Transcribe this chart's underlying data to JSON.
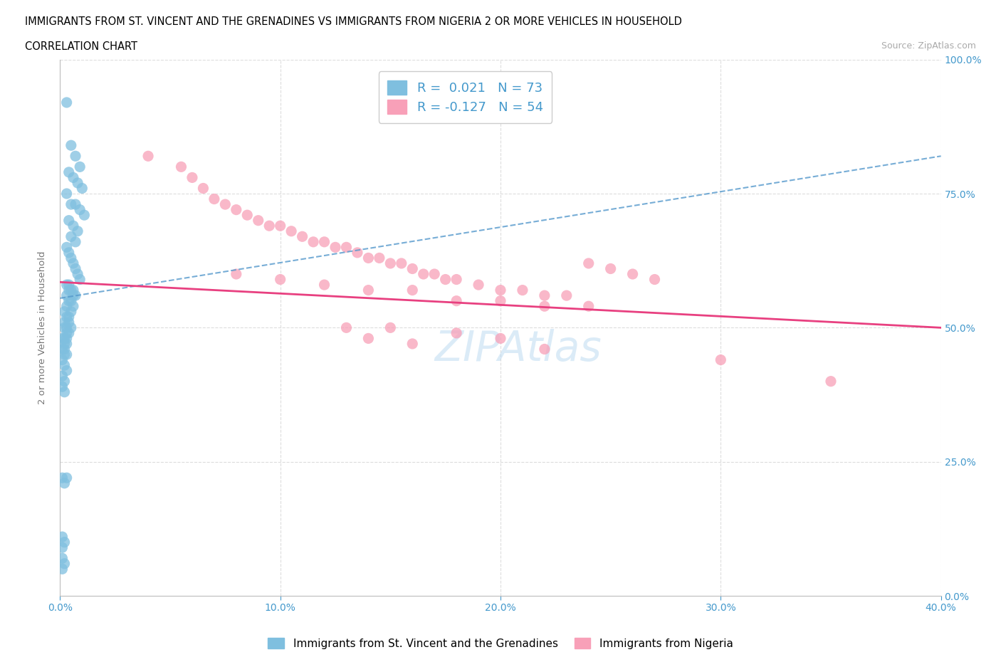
{
  "title_line1": "IMMIGRANTS FROM ST. VINCENT AND THE GRENADINES VS IMMIGRANTS FROM NIGERIA 2 OR MORE VEHICLES IN HOUSEHOLD",
  "title_line2": "CORRELATION CHART",
  "source_text": "Source: ZipAtlas.com",
  "ylabel": "2 or more Vehicles in Household",
  "xlim": [
    0.0,
    0.4
  ],
  "ylim": [
    0.0,
    1.0
  ],
  "xticks": [
    0.0,
    0.1,
    0.2,
    0.3,
    0.4
  ],
  "xticklabels": [
    "0.0%",
    "10.0%",
    "20.0%",
    "30.0%",
    "40.0%"
  ],
  "yticks": [
    0.0,
    0.25,
    0.5,
    0.75,
    1.0
  ],
  "yticklabels": [
    "0.0%",
    "25.0%",
    "50.0%",
    "75.0%",
    "100.0%"
  ],
  "blue_R": 0.021,
  "blue_N": 73,
  "pink_R": -0.127,
  "pink_N": 54,
  "blue_color": "#7fbfdf",
  "pink_color": "#f8a0b8",
  "blue_line_color": "#5599cc",
  "pink_line_color": "#e84080",
  "legend_label_blue": "Immigrants from St. Vincent and the Grenadines",
  "legend_label_pink": "Immigrants from Nigeria",
  "blue_trend_x0": 0.0,
  "blue_trend_y0": 0.555,
  "blue_trend_x1": 0.4,
  "blue_trend_y1": 0.82,
  "pink_trend_x0": 0.0,
  "pink_trend_y0": 0.585,
  "pink_trend_x1": 0.4,
  "pink_trend_y1": 0.5,
  "blue_x": [
    0.003,
    0.005,
    0.007,
    0.009,
    0.004,
    0.006,
    0.008,
    0.01,
    0.003,
    0.005,
    0.007,
    0.009,
    0.011,
    0.004,
    0.006,
    0.008,
    0.005,
    0.007,
    0.003,
    0.004,
    0.005,
    0.006,
    0.007,
    0.008,
    0.009,
    0.004,
    0.006,
    0.003,
    0.005,
    0.007,
    0.004,
    0.006,
    0.003,
    0.005,
    0.004,
    0.006,
    0.003,
    0.005,
    0.002,
    0.004,
    0.003,
    0.002,
    0.004,
    0.003,
    0.005,
    0.002,
    0.003,
    0.004,
    0.002,
    0.003,
    0.001,
    0.002,
    0.003,
    0.001,
    0.002,
    0.003,
    0.002,
    0.001,
    0.002,
    0.003,
    0.001,
    0.002,
    0.001,
    0.002,
    0.003,
    0.001,
    0.002,
    0.001,
    0.002,
    0.001,
    0.001,
    0.002,
    0.001
  ],
  "blue_y": [
    0.92,
    0.84,
    0.82,
    0.8,
    0.79,
    0.78,
    0.77,
    0.76,
    0.75,
    0.73,
    0.73,
    0.72,
    0.71,
    0.7,
    0.69,
    0.68,
    0.67,
    0.66,
    0.65,
    0.64,
    0.63,
    0.62,
    0.61,
    0.6,
    0.59,
    0.58,
    0.57,
    0.58,
    0.57,
    0.56,
    0.57,
    0.56,
    0.56,
    0.55,
    0.55,
    0.54,
    0.54,
    0.53,
    0.53,
    0.52,
    0.52,
    0.51,
    0.51,
    0.5,
    0.5,
    0.5,
    0.49,
    0.49,
    0.48,
    0.48,
    0.48,
    0.47,
    0.47,
    0.46,
    0.46,
    0.45,
    0.45,
    0.44,
    0.43,
    0.42,
    0.41,
    0.4,
    0.39,
    0.38,
    0.22,
    0.22,
    0.21,
    0.11,
    0.1,
    0.09,
    0.07,
    0.06,
    0.05
  ],
  "pink_x": [
    0.04,
    0.055,
    0.06,
    0.065,
    0.07,
    0.075,
    0.08,
    0.085,
    0.09,
    0.095,
    0.1,
    0.105,
    0.11,
    0.115,
    0.12,
    0.125,
    0.13,
    0.135,
    0.14,
    0.145,
    0.15,
    0.155,
    0.16,
    0.165,
    0.17,
    0.175,
    0.18,
    0.19,
    0.2,
    0.21,
    0.22,
    0.23,
    0.24,
    0.25,
    0.26,
    0.27,
    0.08,
    0.1,
    0.12,
    0.14,
    0.16,
    0.18,
    0.2,
    0.22,
    0.24,
    0.13,
    0.15,
    0.18,
    0.2,
    0.14,
    0.16,
    0.22,
    0.35,
    0.3
  ],
  "pink_y": [
    0.82,
    0.8,
    0.78,
    0.76,
    0.74,
    0.73,
    0.72,
    0.71,
    0.7,
    0.69,
    0.69,
    0.68,
    0.67,
    0.66,
    0.66,
    0.65,
    0.65,
    0.64,
    0.63,
    0.63,
    0.62,
    0.62,
    0.61,
    0.6,
    0.6,
    0.59,
    0.59,
    0.58,
    0.57,
    0.57,
    0.56,
    0.56,
    0.62,
    0.61,
    0.6,
    0.59,
    0.6,
    0.59,
    0.58,
    0.57,
    0.57,
    0.55,
    0.55,
    0.54,
    0.54,
    0.5,
    0.5,
    0.49,
    0.48,
    0.48,
    0.47,
    0.46,
    0.4,
    0.44
  ]
}
